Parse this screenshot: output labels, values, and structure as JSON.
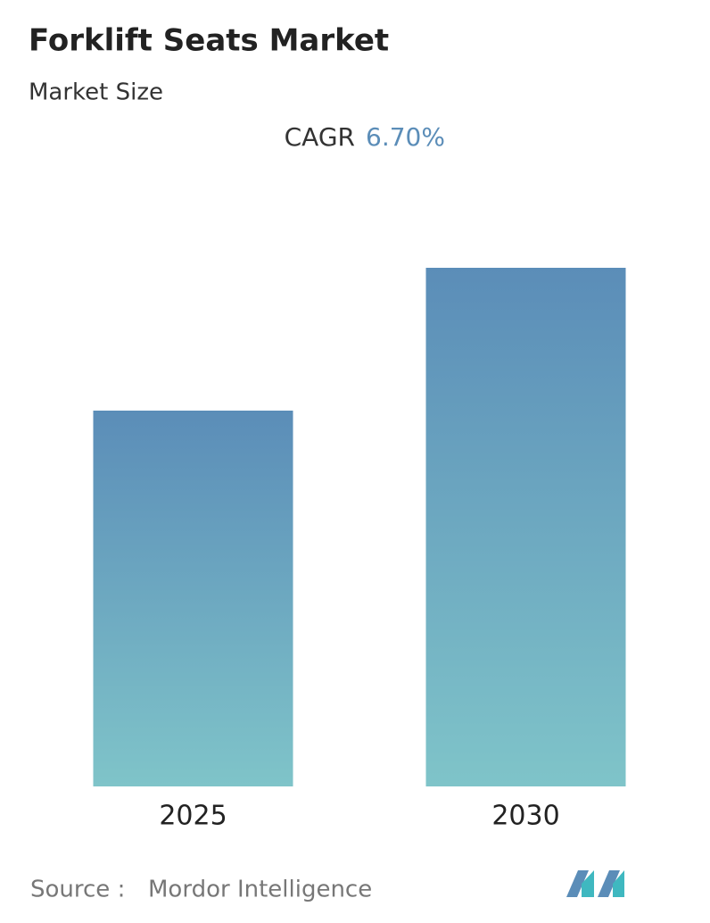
{
  "chart_data": {
    "type": "bar",
    "title": "Forklift Seats Market",
    "subtitle": "Market Size",
    "annotations": {
      "cagr_label": "CAGR",
      "cagr_value": "6.70%"
    },
    "categories": [
      "2025",
      "2030"
    ],
    "values": [
      1.0,
      1.38
    ],
    "color_top": "#5b8db8",
    "color_bottom": "#7fc4c9",
    "source": {
      "label": "Source :",
      "name": "Mordor Intelligence"
    }
  }
}
